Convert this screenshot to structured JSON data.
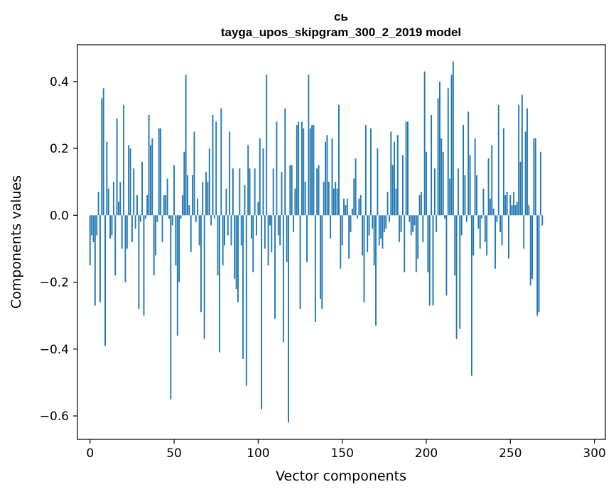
{
  "chart_data": {
    "type": "bar",
    "title": "сь",
    "subtitle": "tayga_upos_skipgram_300_2_2019 model",
    "xlabel": "Vector components",
    "ylabel": "Components values",
    "xlim": [
      -7.5,
      306.5
    ],
    "ylim": [
      -0.67,
      0.51
    ],
    "xticks": [
      0,
      50,
      100,
      150,
      200,
      250,
      300
    ],
    "xtick_labels": [
      "0",
      "50",
      "100",
      "150",
      "200",
      "250",
      "300"
    ],
    "yticks": [
      -0.6,
      -0.4,
      -0.2,
      0.0,
      0.2,
      0.4
    ],
    "ytick_labels": [
      "−0.6",
      "−0.4",
      "−0.2",
      "0.0",
      "0.2",
      "0.4"
    ],
    "grid": false,
    "bar_color": "#1f77b4",
    "values": [
      -0.15,
      -0.06,
      -0.08,
      -0.27,
      -0.06,
      0.07,
      -0.26,
      0.35,
      0.38,
      -0.39,
      0.22,
      0.08,
      -0.07,
      -0.06,
      0.1,
      -0.18,
      0.29,
      0.04,
      0.1,
      -0.1,
      0.33,
      -0.2,
      -0.1,
      0.21,
      0.2,
      -0.08,
      0.14,
      -0.04,
      0.06,
      -0.28,
      -0.02,
      0.16,
      -0.3,
      -0.01,
      0.06,
      0.3,
      0.21,
      0.23,
      -0.18,
      -0.12,
      -0.02,
      0.26,
      0.26,
      -0.08,
      0.06,
      0.06,
      0.11,
      -0.01,
      -0.55,
      -0.03,
      0.15,
      -0.15,
      -0.36,
      -0.2,
      -0.01,
      0.06,
      0.19,
      0.42,
      0.12,
      0.03,
      -0.11,
      0.12,
      0.25,
      -0.02,
      0.05,
      -0.09,
      -0.29,
      0.1,
      -0.37,
      0.13,
      0.1,
      0.2,
      -0.03,
      0.3,
      -0.01,
      0.28,
      -0.18,
      -0.41,
      0.32,
      -0.15,
      -0.09,
      0.08,
      -0.06,
      0.25,
      -0.09,
      0.14,
      -0.19,
      -0.22,
      -0.26,
      0.14,
      -0.09,
      -0.43,
      0.09,
      -0.51,
      0.21,
      0.14,
      -0.07,
      -0.17,
      0.14,
      -0.06,
      0.04,
      0.23,
      -0.58,
      0.2,
      -0.1,
      0.42,
      -0.15,
      -0.03,
      -0.11,
      0.14,
      -0.31,
      0.28,
      -0.06,
      -0.09,
      0.13,
      -0.38,
      0.32,
      -0.14,
      -0.62,
      0.15,
      0.15,
      -0.05,
      0.08,
      0.27,
      0.28,
      -0.28,
      0.28,
      0.26,
      0.1,
      -0.14,
      0.42,
      0.26,
      0.27,
      0.27,
      -0.32,
      0.14,
      0.15,
      -0.25,
      -0.28,
      0.1,
      0.22,
      0.24,
      0.1,
      -0.07,
      0.23,
      0.08,
      0.1,
      0.08,
      0.33,
      -0.16,
      -0.09,
      0.05,
      0.03,
      0.05,
      -0.13,
      -0.05,
      0.02,
      0.11,
      0.17,
      -0.01,
      0.05,
      0.06,
      -0.12,
      -0.26,
      0.27,
      -0.11,
      -0.06,
      0.26,
      -0.04,
      -0.15,
      -0.33,
      0.2,
      -0.09,
      -0.07,
      -0.1,
      -0.05,
      -0.04,
      0.07,
      -0.02,
      0.25,
      0.15,
      0.22,
      0.08,
      0.24,
      -0.08,
      -0.05,
      0.18,
      -0.17,
      0.28,
      0.28,
      -0.02,
      -0.06,
      -0.05,
      -0.03,
      -0.17,
      -0.13,
      0.06,
      0.07,
      -0.08,
      0.43,
      0.19,
      -0.17,
      -0.27,
      0.3,
      -0.27,
      0.14,
      -0.05,
      0.35,
      0.4,
      0.23,
      0.19,
      -0.01,
      -0.24,
      0.38,
      0.11,
      0.42,
      0.46,
      -0.18,
      -0.37,
      0.14,
      -0.34,
      -0.06,
      0.27,
      0.12,
      -0.02,
      0.31,
      0.18,
      -0.48,
      -0.12,
      0.23,
      0.12,
      -0.04,
      -0.1,
      -0.01,
      0.08,
      -0.08,
      -0.12,
      0.17,
      0.05,
      0.21,
      0.02,
      -0.16,
      -0.02,
      0.33,
      -0.05,
      -0.09,
      0.26,
      0.06,
      0.07,
      -0.13,
      0.06,
      0.03,
      0.07,
      0.03,
      0.04,
      0.33,
      0.16,
      0.36,
      -0.1,
      0.25,
      0.32,
      0.03,
      -0.21,
      -0.19,
      0.23,
      0.23,
      -0.3,
      -0.29,
      0.19,
      -0.03
    ]
  }
}
